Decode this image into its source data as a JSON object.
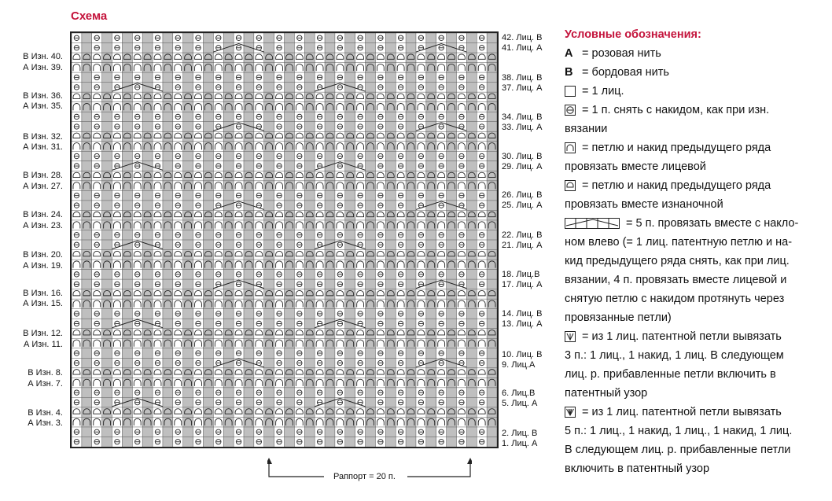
{
  "title": "Схема",
  "left_labels": [
    "В Изн. 40.",
    "А Изн. 39.",
    "В Изн. 36.",
    "А Изн. 35.",
    "В Изн. 32.",
    "А Изн. 31.",
    "В Изн. 28.",
    "А Изн. 27.",
    "В Изн. 24.",
    "А Изн. 23.",
    "В Изн. 20.",
    "А Изн. 19.",
    "В Изн. 16.",
    "А Изн. 15.",
    "В Изн. 12.",
    "А Изн. 11.",
    "В Изн. 8.",
    "А Изн. 7.",
    "В Изн. 4.",
    "А Изн. 3."
  ],
  "right_labels": [
    "42. Лиц. В",
    "41. Лиц. А",
    "38. Лиц. В",
    "37. Лиц. А",
    "34. Лиц. В",
    "33. Лиц. А",
    "30. Лиц. В",
    "29. Лиц. А",
    "26. Лиц. В",
    "25. Лиц. А",
    "22. Лиц. В",
    "21. Лиц. А",
    "18. Лиц.В",
    "17. Лиц. А",
    "14. Лиц. В",
    "13. Лиц. А",
    "10. Лиц. В",
    "9. Лиц.А",
    "6. Лиц.В",
    "5. Лиц. А",
    "2. Лиц. В",
    "1. Лиц. А"
  ],
  "repeat_label": "Раппорт = 20 п.",
  "legend": {
    "title": "Условные обозначения:",
    "a_letter": "А",
    "a_text": "= розовая нить",
    "b_letter": "В",
    "b_text": "= бордовая нить",
    "knit_text": "= 1 лиц.",
    "slip_text_1": "= 1 п. снять с накидом, как при изн.",
    "slip_text_2": "вязании",
    "knit_together_text_1": "= петлю и накид предыдущего ряда",
    "knit_together_text_2": "провязать вместе лицевой",
    "purl_together_text_1": "= петлю и накид предыдущего ряда",
    "purl_together_text_2": "провязать вместе изнаночной",
    "dec5_text_1": "= 5 п. провязать вместе с накло-",
    "dec5_text_2": "ном влево (= 1 лиц. патентную петлю и на-",
    "dec5_text_3": "кид предыдущего ряда снять, как при лиц.",
    "dec5_text_4": "вязании, 4 п. провязать вместе лицевой и",
    "dec5_text_5": "снятую петлю с накидом протянуть через",
    "dec5_text_6": "провязанные петли)",
    "inc3_text_1": "= из 1 лиц. патентной петли вывязать",
    "inc3_text_2": "3 п.: 1 лиц., 1 накид, 1 лиц. В следующем",
    "inc3_text_3": "лиц. р. прибавленные петли включить в",
    "inc3_text_4": "патентный узор",
    "inc5_text_1": "= из 1 лиц. патентной петли вывязать",
    "inc5_text_2": "5 п.: 1 лиц., 1 накид, 1 лиц., 1 накид, 1 лиц.",
    "inc5_text_3": "В следующем лиц. р. прибавленные петли",
    "inc5_text_4": "включить в патентный узор"
  },
  "colors": {
    "accent": "#c4143c",
    "grid_shade": "#bfbfbf",
    "line": "#222222"
  }
}
